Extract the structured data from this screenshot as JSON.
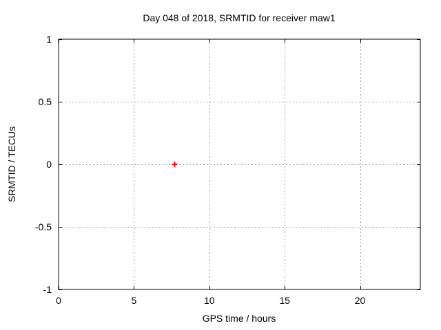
{
  "chart_data": {
    "type": "scatter",
    "title": "Day 048 of 2018, SRMTID for receiver maw1",
    "xlabel": "GPS time / hours",
    "ylabel": "SRMTID / TECUs",
    "xlim": [
      0,
      24
    ],
    "ylim": [
      -1,
      1
    ],
    "xticks": [
      0,
      5,
      10,
      15,
      20
    ],
    "yticks": [
      -1,
      -0.5,
      0,
      0.5,
      1
    ],
    "grid": true,
    "legend": "none",
    "series": [
      {
        "name": "SRMTID",
        "marker": "plus",
        "color": "#ff0000",
        "points": [
          {
            "x": 7.7,
            "y": 0.0
          }
        ]
      }
    ],
    "colors": {
      "background": "#ffffff",
      "frame": "#000000",
      "grid": "#a0a0a0",
      "text": "#000000"
    }
  }
}
